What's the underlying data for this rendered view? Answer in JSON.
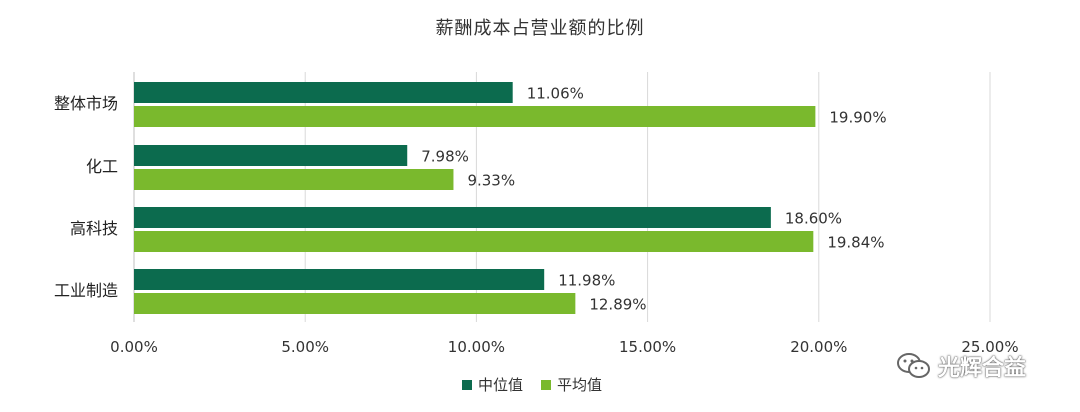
{
  "chart_data": {
    "type": "bar",
    "orientation": "horizontal",
    "title": "薪酬成本占营业额的比例",
    "categories": [
      "整体市场",
      "化工",
      "高科技",
      "工业制造"
    ],
    "series": [
      {
        "name": "中位值",
        "values": [
          11.06,
          7.98,
          18.6,
          11.98
        ],
        "labels": [
          "11.06%",
          "7.98%",
          "18.60%",
          "11.98%"
        ],
        "color": "#0c6b4e"
      },
      {
        "name": "平均值",
        "values": [
          19.9,
          9.33,
          19.84,
          12.89
        ],
        "labels": [
          "19.90%",
          "9.33%",
          "19.84%",
          "12.89%"
        ],
        "color": "#7ab92d"
      }
    ],
    "xlim": [
      0,
      25
    ],
    "xticks": [
      "0.00%",
      "5.00%",
      "10.00%",
      "15.00%",
      "20.00%",
      "25.00%"
    ],
    "grid": true,
    "legend_position": "bottom"
  },
  "watermark": {
    "text": "光辉合益",
    "icon": "wechat-icon"
  }
}
